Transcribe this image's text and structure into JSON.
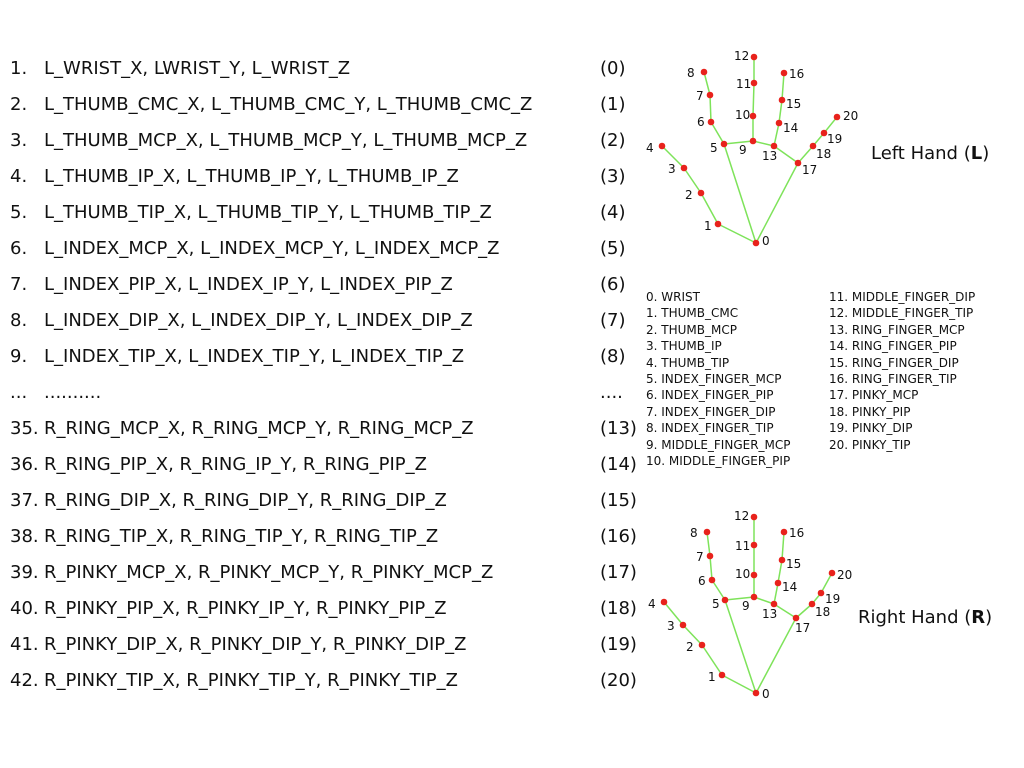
{
  "rows": [
    {
      "num": "1.",
      "text": "L_WRIST_X, LWRIST_Y, L_WRIST_Z",
      "idx": "(0)"
    },
    {
      "num": "2.",
      "text": "L_THUMB_CMC_X, L_THUMB_CMC_Y, L_THUMB_CMC_Z",
      "idx": "(1)"
    },
    {
      "num": "3.",
      "text": "L_THUMB_MCP_X, L_THUMB_MCP_Y, L_THUMB_MCP_Z",
      "idx": "(2)"
    },
    {
      "num": "4.",
      "text": "L_THUMB_IP_X, L_THUMB_IP_Y, L_THUMB_IP_Z",
      "idx": "(3)"
    },
    {
      "num": "5.",
      "text": "L_THUMB_TIP_X, L_THUMB_TIP_Y, L_THUMB_TIP_Z",
      "idx": "(4)"
    },
    {
      "num": "6.",
      "text": "L_INDEX_MCP_X, L_INDEX_MCP_Y, L_INDEX_MCP_Z",
      "idx": "(5)"
    },
    {
      "num": "7.",
      "text": "L_INDEX_PIP_X, L_INDEX_IP_Y, L_INDEX_PIP_Z",
      "idx": "(6)"
    },
    {
      "num": "8.",
      "text": "L_INDEX_DIP_X, L_INDEX_DIP_Y, L_INDEX_DIP_Z",
      "idx": "(7)"
    },
    {
      "num": "9.",
      "text": "L_INDEX_TIP_X, L_INDEX_TIP_Y, L_INDEX_TIP_Z",
      "idx": "(8)"
    },
    {
      "num": "...",
      "text": "..........",
      "idx": "...."
    },
    {
      "num": "35.",
      "text": "R_RING_MCP_X, R_RING_MCP_Y, R_RING_MCP_Z",
      "idx": "(13)"
    },
    {
      "num": "36.",
      "text": "R_RING_PIP_X, R_RING_IP_Y, R_RING_PIP_Z",
      "idx": "(14)"
    },
    {
      "num": "37.",
      "text": "R_RING_DIP_X, R_RING_DIP_Y, R_RING_DIP_Z",
      "idx": "(15)"
    },
    {
      "num": "38.",
      "text": "R_RING_TIP_X, R_RING_TIP_Y, R_RING_TIP_Z",
      "idx": "(16)"
    },
    {
      "num": "39.",
      "text": "R_PINKY_MCP_X, R_PINKY_MCP_Y, R_PINKY_MCP_Z",
      "idx": "(17)"
    },
    {
      "num": "40.",
      "text": "R_PINKY_PIP_X, R_PINKY_IP_Y, R_PINKY_PIP_Z",
      "idx": "(18)"
    },
    {
      "num": "41.",
      "text": "R_PINKY_DIP_X, R_PINKY_DIP_Y, R_PINKY_DIP_Z",
      "idx": "(19)"
    },
    {
      "num": "42.",
      "text": "R_PINKY_TIP_X, R_PINKY_TIP_Y, R_PINKY_TIP_Z",
      "idx": "(20)"
    }
  ],
  "left_hand": {
    "title_prefix": "Left Hand (",
    "title_bold": "L",
    "title_suffix": ")"
  },
  "right_hand": {
    "title_prefix": "Right Hand (",
    "title_bold": "R",
    "title_suffix": ")"
  },
  "landmark_labels": [
    "0",
    "1",
    "2",
    "3",
    "4",
    "5",
    "6",
    "7",
    "8",
    "9",
    "10",
    "11",
    "12",
    "13",
    "14",
    "15",
    "16",
    "17",
    "18",
    "19",
    "20"
  ],
  "legend": {
    "col1": [
      "0. WRIST",
      "1. THUMB_CMC",
      "2. THUMB_MCP",
      "3. THUMB_IP",
      "4. THUMB_TIP",
      "5. INDEX_FINGER_MCP",
      "6. INDEX_FINGER_PIP",
      "7. INDEX_FINGER_DIP",
      "8. INDEX_FINGER_TIP",
      "9. MIDDLE_FINGER_MCP",
      "10. MIDDLE_FINGER_PIP"
    ],
    "col2": [
      "11. MIDDLE_FINGER_DIP",
      "12. MIDDLE_FINGER_TIP",
      "13. RING_FINGER_MCP",
      "14. RING_FINGER_PIP",
      "15. RING_FINGER_DIP",
      "16. RING_FINGER_TIP",
      "17. PINKY_MCP",
      "18. PINKY_PIP",
      "19. PINKY_DIP",
      "20. PINKY_TIP"
    ]
  },
  "colors": {
    "bone": "#7ee35a",
    "joint": "#e8221c",
    "text": "#111111"
  }
}
